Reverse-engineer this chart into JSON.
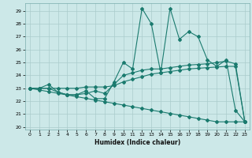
{
  "xlabel": "Humidex (Indice chaleur)",
  "background_color": "#cce8e8",
  "grid_color": "#aacccc",
  "line_color": "#1a7a6e",
  "xlim": [
    -0.5,
    23.5
  ],
  "ylim": [
    19.8,
    29.6
  ],
  "yticks": [
    20,
    21,
    22,
    23,
    24,
    25,
    26,
    27,
    28,
    29
  ],
  "xticks": [
    0,
    1,
    2,
    3,
    4,
    5,
    6,
    7,
    8,
    9,
    10,
    11,
    12,
    13,
    14,
    15,
    16,
    17,
    18,
    19,
    20,
    21,
    22,
    23
  ],
  "series1": [
    23.0,
    23.0,
    23.3,
    22.7,
    22.5,
    22.5,
    22.8,
    22.2,
    22.2,
    23.5,
    25.0,
    24.5,
    29.2,
    28.0,
    24.2,
    29.2,
    26.8,
    27.4,
    27.0,
    25.2,
    24.7,
    25.2,
    21.3,
    20.4
  ],
  "series2": [
    23.0,
    23.0,
    23.0,
    22.7,
    22.5,
    22.5,
    22.6,
    22.8,
    22.6,
    23.3,
    24.0,
    24.2,
    24.4,
    24.5,
    24.5,
    24.6,
    24.7,
    24.8,
    24.85,
    24.9,
    25.0,
    25.1,
    24.9,
    20.4
  ],
  "series3": [
    23.0,
    23.0,
    23.0,
    23.0,
    23.0,
    23.0,
    23.1,
    23.1,
    23.1,
    23.2,
    23.5,
    23.7,
    23.9,
    24.1,
    24.2,
    24.3,
    24.4,
    24.5,
    24.55,
    24.6,
    24.65,
    24.7,
    24.7,
    20.4
  ],
  "series4": [
    23.0,
    22.87,
    22.74,
    22.61,
    22.48,
    22.35,
    22.22,
    22.09,
    21.96,
    21.83,
    21.7,
    21.57,
    21.44,
    21.31,
    21.18,
    21.05,
    20.92,
    20.79,
    20.66,
    20.53,
    20.4,
    20.4,
    20.4,
    20.4
  ]
}
